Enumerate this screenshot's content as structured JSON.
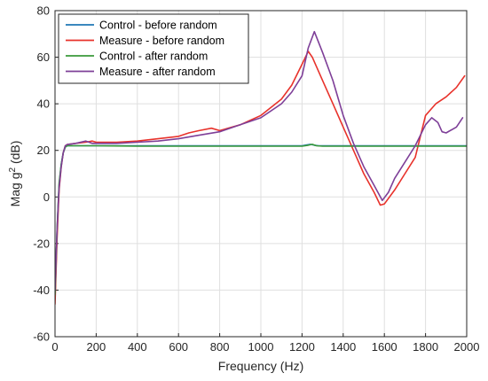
{
  "chart_data": {
    "type": "line",
    "title": "",
    "xlabel": "Frequency (Hz)",
    "ylabel_prefix": "Mag g",
    "ylabel_sup": "2",
    "ylabel_suffix": " (dB)",
    "xlim": [
      0,
      2000
    ],
    "ylim": [
      -60,
      80
    ],
    "xticks": [
      0,
      200,
      400,
      600,
      800,
      1000,
      1200,
      1400,
      1600,
      1800,
      2000
    ],
    "yticks": [
      -60,
      -40,
      -20,
      0,
      20,
      40,
      60,
      80
    ],
    "xtick_labels": [
      "0",
      "200",
      "400",
      "600",
      "800",
      "1000",
      "1200",
      "1400",
      "1600",
      "1800",
      "2000"
    ],
    "ytick_labels": [
      "-60",
      "-40",
      "-20",
      "0",
      "20",
      "40",
      "60",
      "80"
    ],
    "grid": true,
    "legend_position": "top-left",
    "series": [
      {
        "name": "Control - before random",
        "color": "#1f77b4",
        "points": [
          [
            0,
            -44
          ],
          [
            10,
            -15
          ],
          [
            20,
            5
          ],
          [
            30,
            14
          ],
          [
            40,
            19
          ],
          [
            50,
            21.5
          ],
          [
            60,
            22
          ],
          [
            100,
            22
          ],
          [
            200,
            22
          ],
          [
            400,
            22
          ],
          [
            600,
            22
          ],
          [
            800,
            22
          ],
          [
            1000,
            22
          ],
          [
            1200,
            22
          ],
          [
            1220,
            22.3
          ],
          [
            1240,
            22.6
          ],
          [
            1260,
            22.2
          ],
          [
            1280,
            22
          ],
          [
            1400,
            22
          ],
          [
            1600,
            22
          ],
          [
            1800,
            22
          ],
          [
            2000,
            22
          ]
        ]
      },
      {
        "name": "Measure - before random",
        "color": "#e8322b",
        "points": [
          [
            0,
            -46
          ],
          [
            10,
            -18
          ],
          [
            20,
            3
          ],
          [
            30,
            13
          ],
          [
            40,
            19
          ],
          [
            50,
            22
          ],
          [
            60,
            22.5
          ],
          [
            100,
            23
          ],
          [
            150,
            23.5
          ],
          [
            180,
            24
          ],
          [
            200,
            23.5
          ],
          [
            300,
            23.5
          ],
          [
            400,
            24
          ],
          [
            500,
            25
          ],
          [
            600,
            26
          ],
          [
            650,
            27.5
          ],
          [
            700,
            28.5
          ],
          [
            760,
            29.5
          ],
          [
            800,
            28.5
          ],
          [
            900,
            31
          ],
          [
            1000,
            35
          ],
          [
            1100,
            42
          ],
          [
            1150,
            48
          ],
          [
            1200,
            57
          ],
          [
            1230,
            62.5
          ],
          [
            1250,
            60
          ],
          [
            1300,
            50
          ],
          [
            1350,
            40
          ],
          [
            1400,
            30
          ],
          [
            1450,
            20
          ],
          [
            1500,
            10
          ],
          [
            1550,
            2
          ],
          [
            1580,
            -3.5
          ],
          [
            1600,
            -3
          ],
          [
            1650,
            3
          ],
          [
            1700,
            10
          ],
          [
            1750,
            17
          ],
          [
            1800,
            35
          ],
          [
            1850,
            40
          ],
          [
            1900,
            43
          ],
          [
            1950,
            47
          ],
          [
            1990,
            52
          ]
        ]
      },
      {
        "name": "Control - after random",
        "color": "#3a9a3a",
        "points": [
          [
            0,
            -42
          ],
          [
            10,
            -14
          ],
          [
            20,
            6
          ],
          [
            30,
            14
          ],
          [
            40,
            19
          ],
          [
            50,
            21.5
          ],
          [
            60,
            22
          ],
          [
            100,
            22
          ],
          [
            200,
            22
          ],
          [
            400,
            21.8
          ],
          [
            600,
            21.8
          ],
          [
            800,
            21.8
          ],
          [
            1000,
            21.8
          ],
          [
            1200,
            21.8
          ],
          [
            1230,
            22.2
          ],
          [
            1250,
            22.6
          ],
          [
            1270,
            22
          ],
          [
            1300,
            21.8
          ],
          [
            1400,
            21.8
          ],
          [
            1600,
            21.8
          ],
          [
            1800,
            21.8
          ],
          [
            2000,
            21.8
          ]
        ]
      },
      {
        "name": "Measure - after random",
        "color": "#7e3f98",
        "points": [
          [
            0,
            -40
          ],
          [
            10,
            -14
          ],
          [
            20,
            4
          ],
          [
            30,
            13
          ],
          [
            40,
            19
          ],
          [
            50,
            22
          ],
          [
            60,
            22.5
          ],
          [
            100,
            23
          ],
          [
            150,
            24
          ],
          [
            180,
            23
          ],
          [
            200,
            23
          ],
          [
            300,
            23
          ],
          [
            400,
            23.5
          ],
          [
            500,
            24
          ],
          [
            600,
            25
          ],
          [
            700,
            26.5
          ],
          [
            800,
            28
          ],
          [
            900,
            31
          ],
          [
            1000,
            34
          ],
          [
            1100,
            40
          ],
          [
            1150,
            45
          ],
          [
            1200,
            52
          ],
          [
            1230,
            64
          ],
          [
            1260,
            71
          ],
          [
            1300,
            62
          ],
          [
            1350,
            50
          ],
          [
            1400,
            35
          ],
          [
            1450,
            23
          ],
          [
            1500,
            13
          ],
          [
            1550,
            5
          ],
          [
            1590,
            -1.5
          ],
          [
            1620,
            2
          ],
          [
            1650,
            8
          ],
          [
            1700,
            15
          ],
          [
            1750,
            22
          ],
          [
            1800,
            31
          ],
          [
            1830,
            34
          ],
          [
            1860,
            32
          ],
          [
            1880,
            28
          ],
          [
            1900,
            27.5
          ],
          [
            1950,
            30
          ],
          [
            1980,
            34
          ]
        ]
      }
    ]
  }
}
